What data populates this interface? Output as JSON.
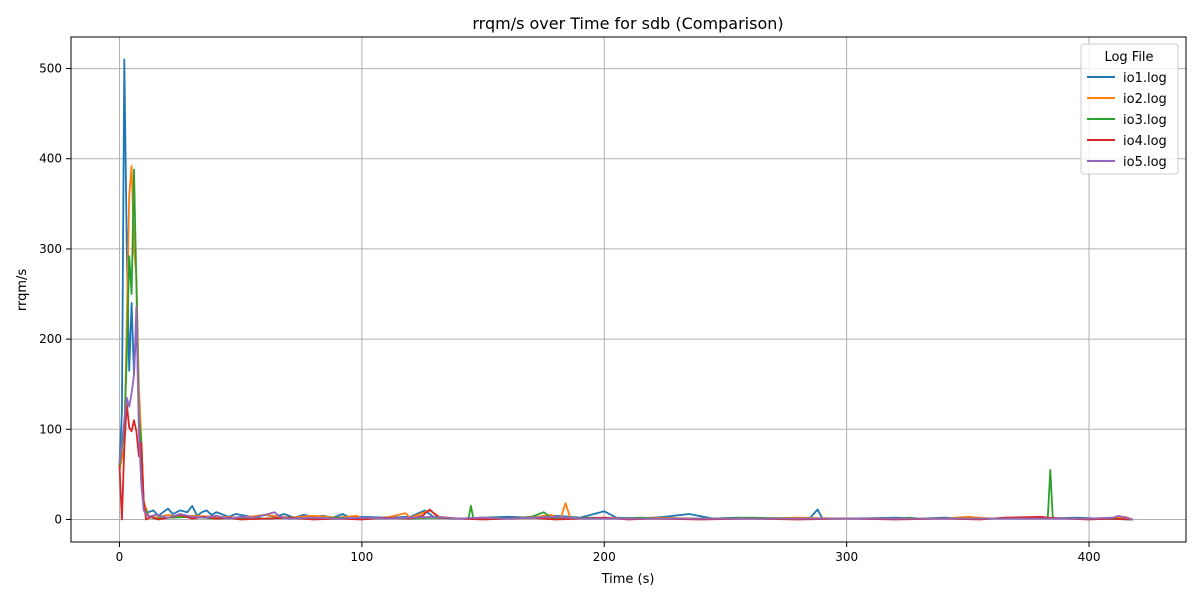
{
  "chart_data": {
    "type": "line",
    "title": "rrqm/s over Time for sdb (Comparison)",
    "xlabel": "Time (s)",
    "ylabel": "rrqm/s",
    "xlim": [
      -20,
      440
    ],
    "ylim": [
      -25,
      535
    ],
    "xticks": [
      0,
      100,
      200,
      300,
      400
    ],
    "yticks": [
      0,
      100,
      200,
      300,
      400,
      500
    ],
    "grid": true,
    "legend": {
      "title": "Log File",
      "placement": "top-right"
    },
    "series": [
      {
        "name": "io1.log",
        "color": "#1f77b4",
        "points": [
          [
            0,
            60
          ],
          [
            1,
            120
          ],
          [
            2,
            510
          ],
          [
            3,
            300
          ],
          [
            4,
            165
          ],
          [
            5,
            240
          ],
          [
            6,
            160
          ],
          [
            7,
            220
          ],
          [
            8,
            120
          ],
          [
            9,
            40
          ],
          [
            10,
            12
          ],
          [
            12,
            8
          ],
          [
            14,
            10
          ],
          [
            16,
            4
          ],
          [
            18,
            8
          ],
          [
            20,
            12
          ],
          [
            22,
            6
          ],
          [
            25,
            10
          ],
          [
            28,
            8
          ],
          [
            30,
            15
          ],
          [
            32,
            4
          ],
          [
            34,
            8
          ],
          [
            36,
            10
          ],
          [
            38,
            5
          ],
          [
            40,
            8
          ],
          [
            42,
            6
          ],
          [
            45,
            3
          ],
          [
            48,
            6
          ],
          [
            52,
            4
          ],
          [
            56,
            2
          ],
          [
            60,
            5
          ],
          [
            64,
            3
          ],
          [
            68,
            6
          ],
          [
            72,
            2
          ],
          [
            76,
            5
          ],
          [
            80,
            3
          ],
          [
            84,
            4
          ],
          [
            88,
            2
          ],
          [
            92,
            6
          ],
          [
            96,
            1
          ],
          [
            100,
            3
          ],
          [
            110,
            2
          ],
          [
            120,
            3
          ],
          [
            126,
            10
          ],
          [
            130,
            2
          ],
          [
            140,
            1
          ],
          [
            150,
            2
          ],
          [
            160,
            3
          ],
          [
            170,
            2
          ],
          [
            180,
            4
          ],
          [
            190,
            2
          ],
          [
            200,
            9
          ],
          [
            205,
            2
          ],
          [
            215,
            1
          ],
          [
            225,
            3
          ],
          [
            235,
            6
          ],
          [
            245,
            1
          ],
          [
            255,
            2
          ],
          [
            265,
            1
          ],
          [
            275,
            1
          ],
          [
            285,
            2
          ],
          [
            288,
            11
          ],
          [
            290,
            1
          ],
          [
            300,
            1
          ],
          [
            320,
            2
          ],
          [
            330,
            1
          ],
          [
            340,
            2
          ],
          [
            350,
            1
          ],
          [
            360,
            1
          ],
          [
            380,
            1
          ],
          [
            395,
            2
          ],
          [
            405,
            1
          ],
          [
            418,
            0
          ]
        ]
      },
      {
        "name": "io2.log",
        "color": "#ff7f0e",
        "points": [
          [
            0,
            55
          ],
          [
            2,
            80
          ],
          [
            3,
            220
          ],
          [
            4,
            360
          ],
          [
            5,
            392
          ],
          [
            6,
            300
          ],
          [
            7,
            270
          ],
          [
            8,
            145
          ],
          [
            9,
            90
          ],
          [
            10,
            20
          ],
          [
            12,
            4
          ],
          [
            15,
            2
          ],
          [
            20,
            5
          ],
          [
            25,
            3
          ],
          [
            30,
            4
          ],
          [
            40,
            3
          ],
          [
            50,
            2
          ],
          [
            60,
            5
          ],
          [
            70,
            2
          ],
          [
            80,
            4
          ],
          [
            90,
            2
          ],
          [
            98,
            4
          ],
          [
            100,
            1
          ],
          [
            110,
            2
          ],
          [
            118,
            7
          ],
          [
            120,
            2
          ],
          [
            128,
            10
          ],
          [
            132,
            3
          ],
          [
            140,
            1
          ],
          [
            150,
            2
          ],
          [
            160,
            1
          ],
          [
            170,
            2
          ],
          [
            178,
            5
          ],
          [
            182,
            1
          ],
          [
            184,
            18
          ],
          [
            186,
            2
          ],
          [
            190,
            1
          ],
          [
            200,
            2
          ],
          [
            210,
            1
          ],
          [
            220,
            2
          ],
          [
            240,
            1
          ],
          [
            260,
            1
          ],
          [
            280,
            2
          ],
          [
            300,
            1
          ],
          [
            320,
            1
          ],
          [
            340,
            1
          ],
          [
            350,
            3
          ],
          [
            360,
            1
          ],
          [
            380,
            1
          ],
          [
            400,
            1
          ],
          [
            410,
            2
          ],
          [
            415,
            3
          ],
          [
            418,
            0
          ]
        ]
      },
      {
        "name": "io3.log",
        "color": "#2ca02c",
        "points": [
          [
            0,
            58
          ],
          [
            2,
            100
          ],
          [
            3,
            180
          ],
          [
            4,
            292
          ],
          [
            5,
            250
          ],
          [
            6,
            388
          ],
          [
            7,
            260
          ],
          [
            8,
            115
          ],
          [
            9,
            85
          ],
          [
            10,
            15
          ],
          [
            12,
            3
          ],
          [
            15,
            1
          ],
          [
            20,
            2
          ],
          [
            30,
            3
          ],
          [
            40,
            1
          ],
          [
            50,
            2
          ],
          [
            60,
            1
          ],
          [
            70,
            2
          ],
          [
            80,
            1
          ],
          [
            90,
            2
          ],
          [
            100,
            1
          ],
          [
            110,
            2
          ],
          [
            120,
            1
          ],
          [
            130,
            2
          ],
          [
            140,
            1
          ],
          [
            144,
            1
          ],
          [
            145,
            15
          ],
          [
            146,
            1
          ],
          [
            155,
            2
          ],
          [
            160,
            1
          ],
          [
            170,
            3
          ],
          [
            175,
            8
          ],
          [
            178,
            2
          ],
          [
            185,
            1
          ],
          [
            195,
            2
          ],
          [
            205,
            1
          ],
          [
            215,
            2
          ],
          [
            225,
            1
          ],
          [
            240,
            1
          ],
          [
            260,
            2
          ],
          [
            280,
            1
          ],
          [
            300,
            1
          ],
          [
            320,
            1
          ],
          [
            326,
            2
          ],
          [
            330,
            1
          ],
          [
            350,
            1
          ],
          [
            370,
            1
          ],
          [
            382,
            1
          ],
          [
            383,
            2
          ],
          [
            384,
            55
          ],
          [
            385,
            3
          ],
          [
            386,
            1
          ],
          [
            395,
            1
          ],
          [
            405,
            1
          ],
          [
            418,
            0
          ]
        ]
      },
      {
        "name": "io4.log",
        "color": "#d62728",
        "points": [
          [
            0,
            60
          ],
          [
            1,
            0
          ],
          [
            2,
            80
          ],
          [
            3,
            128
          ],
          [
            4,
            102
          ],
          [
            5,
            98
          ],
          [
            6,
            110
          ],
          [
            7,
            98
          ],
          [
            8,
            70
          ],
          [
            9,
            85
          ],
          [
            10,
            20
          ],
          [
            11,
            0
          ],
          [
            13,
            3
          ],
          [
            16,
            0
          ],
          [
            20,
            2
          ],
          [
            25,
            5
          ],
          [
            30,
            1
          ],
          [
            35,
            3
          ],
          [
            40,
            1
          ],
          [
            45,
            2
          ],
          [
            50,
            0
          ],
          [
            60,
            1
          ],
          [
            70,
            2
          ],
          [
            80,
            0
          ],
          [
            90,
            1
          ],
          [
            100,
            0
          ],
          [
            110,
            2
          ],
          [
            120,
            1
          ],
          [
            125,
            4
          ],
          [
            128,
            11
          ],
          [
            130,
            6
          ],
          [
            132,
            2
          ],
          [
            140,
            1
          ],
          [
            150,
            0
          ],
          [
            160,
            1
          ],
          [
            170,
            2
          ],
          [
            180,
            0
          ],
          [
            190,
            1
          ],
          [
            200,
            2
          ],
          [
            210,
            0
          ],
          [
            220,
            1
          ],
          [
            240,
            0
          ],
          [
            260,
            1
          ],
          [
            280,
            0
          ],
          [
            300,
            1
          ],
          [
            320,
            0
          ],
          [
            340,
            1
          ],
          [
            355,
            0
          ],
          [
            365,
            2
          ],
          [
            380,
            3
          ],
          [
            383,
            2
          ],
          [
            390,
            1
          ],
          [
            400,
            0
          ],
          [
            410,
            1
          ],
          [
            418,
            0
          ]
        ]
      },
      {
        "name": "io5.log",
        "color": "#9467bd",
        "points": [
          [
            0,
            62
          ],
          [
            2,
            110
          ],
          [
            3,
            135
          ],
          [
            4,
            125
          ],
          [
            5,
            140
          ],
          [
            6,
            160
          ],
          [
            7,
            236
          ],
          [
            8,
            95
          ],
          [
            9,
            40
          ],
          [
            10,
            10
          ],
          [
            12,
            3
          ],
          [
            15,
            5
          ],
          [
            20,
            2
          ],
          [
            25,
            6
          ],
          [
            30,
            3
          ],
          [
            35,
            2
          ],
          [
            40,
            4
          ],
          [
            45,
            1
          ],
          [
            50,
            3
          ],
          [
            55,
            2
          ],
          [
            60,
            5
          ],
          [
            64,
            8
          ],
          [
            66,
            3
          ],
          [
            70,
            1
          ],
          [
            80,
            2
          ],
          [
            90,
            1
          ],
          [
            100,
            2
          ],
          [
            110,
            1
          ],
          [
            120,
            2
          ],
          [
            130,
            3
          ],
          [
            140,
            1
          ],
          [
            150,
            2
          ],
          [
            160,
            1
          ],
          [
            170,
            2
          ],
          [
            180,
            3
          ],
          [
            190,
            1
          ],
          [
            200,
            1
          ],
          [
            220,
            1
          ],
          [
            240,
            1
          ],
          [
            260,
            1
          ],
          [
            280,
            1
          ],
          [
            300,
            1
          ],
          [
            320,
            1
          ],
          [
            340,
            1
          ],
          [
            360,
            1
          ],
          [
            380,
            1
          ],
          [
            400,
            1
          ],
          [
            410,
            2
          ],
          [
            412,
            4
          ],
          [
            418,
            0
          ]
        ]
      }
    ]
  }
}
